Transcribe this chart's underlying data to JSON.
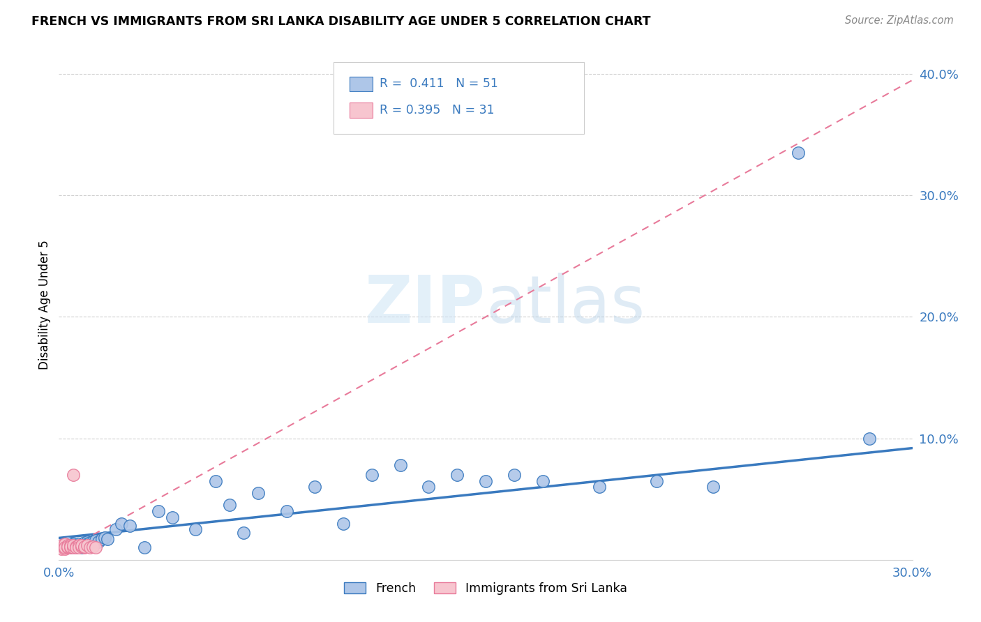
{
  "title": "FRENCH VS IMMIGRANTS FROM SRI LANKA DISABILITY AGE UNDER 5 CORRELATION CHART",
  "source": "Source: ZipAtlas.com",
  "ylabel": "Disability Age Under 5",
  "xlim": [
    0.0,
    0.3
  ],
  "ylim": [
    0.0,
    0.42
  ],
  "ytick_vals": [
    0.1,
    0.2,
    0.3,
    0.4
  ],
  "xtick_vals": [
    0.0,
    0.3
  ],
  "blue_color": "#aec6e8",
  "blue_line_color": "#3a7abf",
  "pink_color": "#f7c5cf",
  "pink_line_color": "#e87a9a",
  "legend_R1": "0.411",
  "legend_N1": "51",
  "legend_R2": "0.395",
  "legend_N2": "31",
  "watermark_zip": "ZIP",
  "watermark_atlas": "atlas",
  "blue_trend_x0": 0.0,
  "blue_trend_y0": 0.018,
  "blue_trend_x1": 0.3,
  "blue_trend_y1": 0.092,
  "pink_trend_x0": 0.0,
  "pink_trend_y0": 0.005,
  "pink_trend_x1": 0.3,
  "pink_trend_y1": 0.395,
  "french_x": [
    0.001,
    0.002,
    0.002,
    0.003,
    0.003,
    0.004,
    0.004,
    0.005,
    0.005,
    0.006,
    0.006,
    0.007,
    0.007,
    0.008,
    0.008,
    0.009,
    0.01,
    0.01,
    0.011,
    0.012,
    0.013,
    0.014,
    0.015,
    0.016,
    0.017,
    0.02,
    0.022,
    0.025,
    0.03,
    0.035,
    0.04,
    0.048,
    0.055,
    0.06,
    0.065,
    0.07,
    0.08,
    0.09,
    0.1,
    0.11,
    0.12,
    0.13,
    0.14,
    0.15,
    0.16,
    0.17,
    0.19,
    0.21,
    0.23,
    0.26,
    0.285
  ],
  "french_y": [
    0.012,
    0.01,
    0.013,
    0.011,
    0.014,
    0.01,
    0.012,
    0.011,
    0.013,
    0.01,
    0.012,
    0.011,
    0.013,
    0.01,
    0.012,
    0.014,
    0.015,
    0.013,
    0.014,
    0.015,
    0.016,
    0.015,
    0.017,
    0.018,
    0.017,
    0.025,
    0.03,
    0.028,
    0.01,
    0.04,
    0.035,
    0.025,
    0.065,
    0.045,
    0.022,
    0.055,
    0.04,
    0.06,
    0.03,
    0.07,
    0.078,
    0.06,
    0.07,
    0.065,
    0.07,
    0.065,
    0.06,
    0.065,
    0.06,
    0.335,
    0.1
  ],
  "sri_x": [
    0.001,
    0.001,
    0.001,
    0.001,
    0.002,
    0.002,
    0.002,
    0.002,
    0.002,
    0.003,
    0.003,
    0.003,
    0.003,
    0.004,
    0.004,
    0.004,
    0.005,
    0.005,
    0.005,
    0.006,
    0.006,
    0.007,
    0.007,
    0.008,
    0.008,
    0.009,
    0.009,
    0.01,
    0.011,
    0.012,
    0.013
  ],
  "sri_y": [
    0.01,
    0.011,
    0.009,
    0.012,
    0.01,
    0.011,
    0.009,
    0.013,
    0.01,
    0.011,
    0.01,
    0.012,
    0.011,
    0.01,
    0.012,
    0.011,
    0.07,
    0.01,
    0.012,
    0.011,
    0.01,
    0.012,
    0.01,
    0.011,
    0.012,
    0.01,
    0.011,
    0.012,
    0.01,
    0.011,
    0.01
  ]
}
